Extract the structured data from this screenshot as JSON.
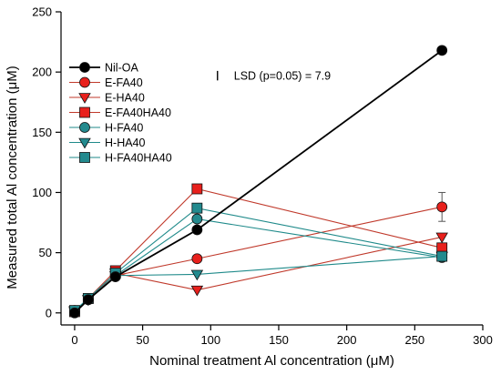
{
  "chart_data": {
    "type": "line",
    "title": "",
    "xlabel": "Nominal treatment Al concentration (μM)",
    "ylabel": "Measured total Al concentration (μM)",
    "xlim": [
      -10,
      300
    ],
    "ylim": [
      -10,
      250
    ],
    "xticks": [
      0,
      50,
      100,
      150,
      200,
      250,
      300
    ],
    "yticks": [
      0,
      50,
      100,
      150,
      200,
      250
    ],
    "xtick_labels": [
      "0",
      "50",
      "100",
      "150",
      "200",
      "250",
      "300"
    ],
    "ytick_labels": [
      "0",
      "50",
      "100",
      "150",
      "200",
      "250"
    ],
    "grid": false,
    "legend_position": "top-left",
    "annotation": {
      "text": "LSD (p=0.05) = 7.9",
      "bar_length": 7.9,
      "x": 105,
      "y": 197
    },
    "series": [
      {
        "name": "Nil-OA",
        "marker": "circle",
        "color": "#000000",
        "line_color": "#000000",
        "x": [
          0,
          10,
          30,
          90,
          270
        ],
        "y": [
          0,
          11,
          30,
          69,
          218
        ],
        "error": [
          0,
          0,
          0,
          0,
          3
        ]
      },
      {
        "name": "E-FA40",
        "marker": "circle",
        "color": "#e8201c",
        "line_color": "#c0392b",
        "x": [
          0,
          10,
          30,
          90,
          270
        ],
        "y": [
          1,
          11,
          31,
          45,
          88
        ],
        "error": [
          0,
          0,
          0,
          0,
          12
        ]
      },
      {
        "name": "E-HA40",
        "marker": "triangle-down",
        "color": "#e8201c",
        "line_color": "#c0392b",
        "x": [
          0,
          10,
          30,
          90,
          270
        ],
        "y": [
          1,
          11,
          33,
          19,
          63
        ],
        "error": [
          0,
          0,
          0,
          0,
          0
        ]
      },
      {
        "name": "E-FA40HA40",
        "marker": "square",
        "color": "#e8201c",
        "line_color": "#c0392b",
        "x": [
          0,
          10,
          30,
          90,
          270
        ],
        "y": [
          1,
          12,
          35,
          103,
          54
        ],
        "error": [
          0,
          0,
          0,
          0,
          0
        ]
      },
      {
        "name": "H-FA40",
        "marker": "circle",
        "color": "#238a8e",
        "line_color": "#1f8a8a",
        "x": [
          0,
          10,
          30,
          90,
          270
        ],
        "y": [
          2,
          11,
          31,
          78,
          46
        ],
        "error": [
          0,
          0,
          0,
          0,
          0
        ]
      },
      {
        "name": "H-HA40",
        "marker": "triangle-down",
        "color": "#238a8e",
        "line_color": "#1f8a8a",
        "x": [
          0,
          10,
          30,
          90,
          270
        ],
        "y": [
          2,
          11,
          31,
          32,
          47
        ],
        "error": [
          0,
          0,
          0,
          0,
          0
        ]
      },
      {
        "name": "H-FA40HA40",
        "marker": "square",
        "color": "#238a8e",
        "line_color": "#1f8a8a",
        "x": [
          0,
          10,
          30,
          90,
          270
        ],
        "y": [
          2,
          12,
          33,
          87,
          47
        ],
        "error": [
          0,
          0,
          0,
          0,
          0
        ]
      }
    ]
  }
}
